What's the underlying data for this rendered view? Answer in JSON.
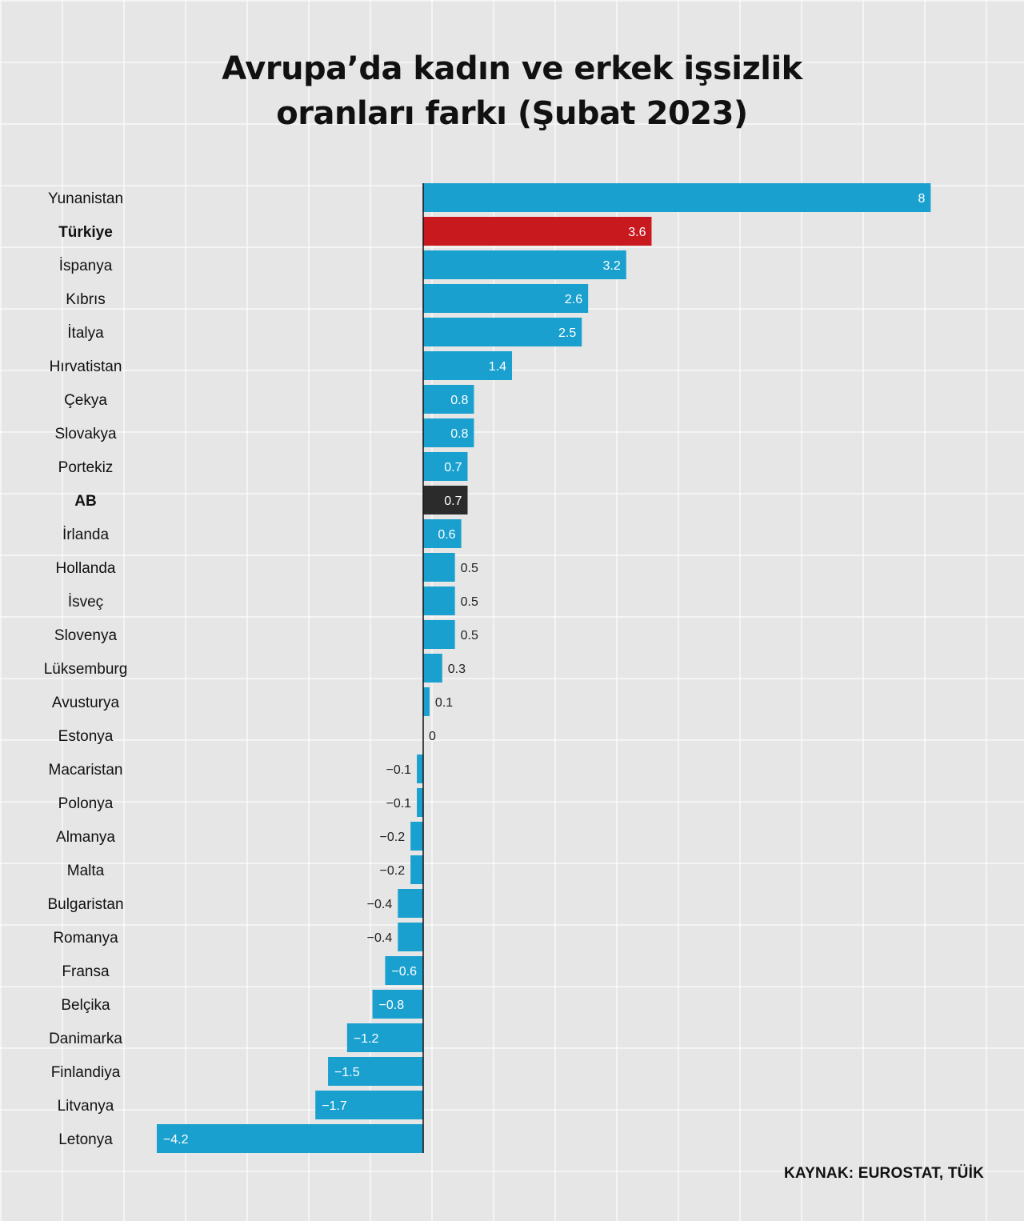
{
  "title": {
    "line1": "Avrupa’da kadın ve erkek işsizlik",
    "line2": "oranları farkı (Şubat 2023)"
  },
  "source": "KAYNAK: EUROSTAT, TÜİK",
  "colors": {
    "bar": "#1aa0cf",
    "highlight_turkiye": "#c8191e",
    "highlight_eu": "#2b2b2b",
    "background": "#e6e6e6"
  },
  "chart_data": {
    "type": "bar",
    "orientation": "horizontal",
    "title": "Avrupa’da kadın ve erkek işsizlik oranları farkı (Şubat 2023)",
    "categories": [
      "Yunanistan",
      "Türkiye",
      "İspanya",
      "Kıbrıs",
      "İtalya",
      "Hırvatistan",
      "Çekya",
      "Slovakya",
      "Portekiz",
      "AB",
      "İrlanda",
      "Hollanda",
      "İsveç",
      "Slovenya",
      "Lüksemburg",
      "Avusturya",
      "Estonya",
      "Macaristan",
      "Polonya",
      "Almanya",
      "Malta",
      "Bulgaristan",
      "Romanya",
      "Fransa",
      "Belçika",
      "Danimarka",
      "Finlandiya",
      "Litvanya",
      "Letonya"
    ],
    "values": [
      8,
      3.6,
      3.2,
      2.6,
      2.5,
      1.4,
      0.8,
      0.8,
      0.7,
      0.7,
      0.6,
      0.5,
      0.5,
      0.5,
      0.3,
      0.1,
      0,
      -0.1,
      -0.1,
      -0.2,
      -0.2,
      -0.4,
      -0.4,
      -0.6,
      -0.8,
      -1.2,
      -1.5,
      -1.7,
      -4.2
    ],
    "value_labels": [
      "8",
      "3.6",
      "3.2",
      "2.6",
      "2.5",
      "1.4",
      "0.8",
      "0.8",
      "0.7",
      "0.7",
      "0.6",
      "0.5",
      "0.5",
      "0.5",
      "0.3",
      "0.1",
      "0",
      "−0.1",
      "−0.1",
      "−0.2",
      "−0.2",
      "−0.4",
      "−0.4",
      "−0.6",
      "−0.8",
      "−1.2",
      "−1.5",
      "−1.7",
      "−4.2"
    ],
    "bold_categories": [
      "Türkiye",
      "AB"
    ],
    "highlight": {
      "Türkiye": "#c8191e",
      "AB": "#2b2b2b"
    },
    "xlim": [
      -4.2,
      8
    ],
    "grid": true,
    "legend": "none"
  }
}
